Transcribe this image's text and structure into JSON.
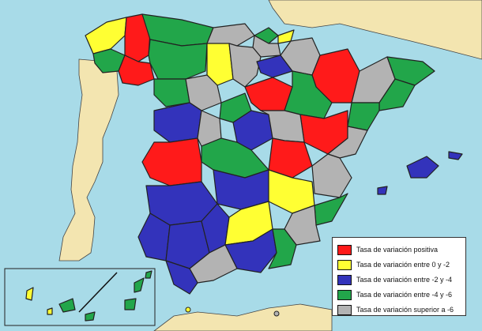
{
  "map": {
    "region": "Spain provinces",
    "colors": {
      "sea": "#a8dbe8",
      "land_outside": "#f3e5b0",
      "positive": "#ff1a1a",
      "between_0_-2": "#ffff33",
      "between_-2_-4": "#3333bb",
      "between_-4_-6": "#22a64a",
      "above_-6": "#b3b3b3"
    }
  },
  "legend": {
    "items": [
      {
        "label": "Tasa de variación positiva",
        "color": "#ff1a1a"
      },
      {
        "label": "Tasa de variación entre 0 y -2",
        "color": "#ffff33"
      },
      {
        "label": "Tasa de variación entre -2 y -4",
        "color": "#3333bb"
      },
      {
        "label": "Tasa de variación entre -4 y -6",
        "color": "#22a64a"
      },
      {
        "label": "Tasa de variación superior a -6",
        "color": "#b3b3b3"
      }
    ]
  }
}
